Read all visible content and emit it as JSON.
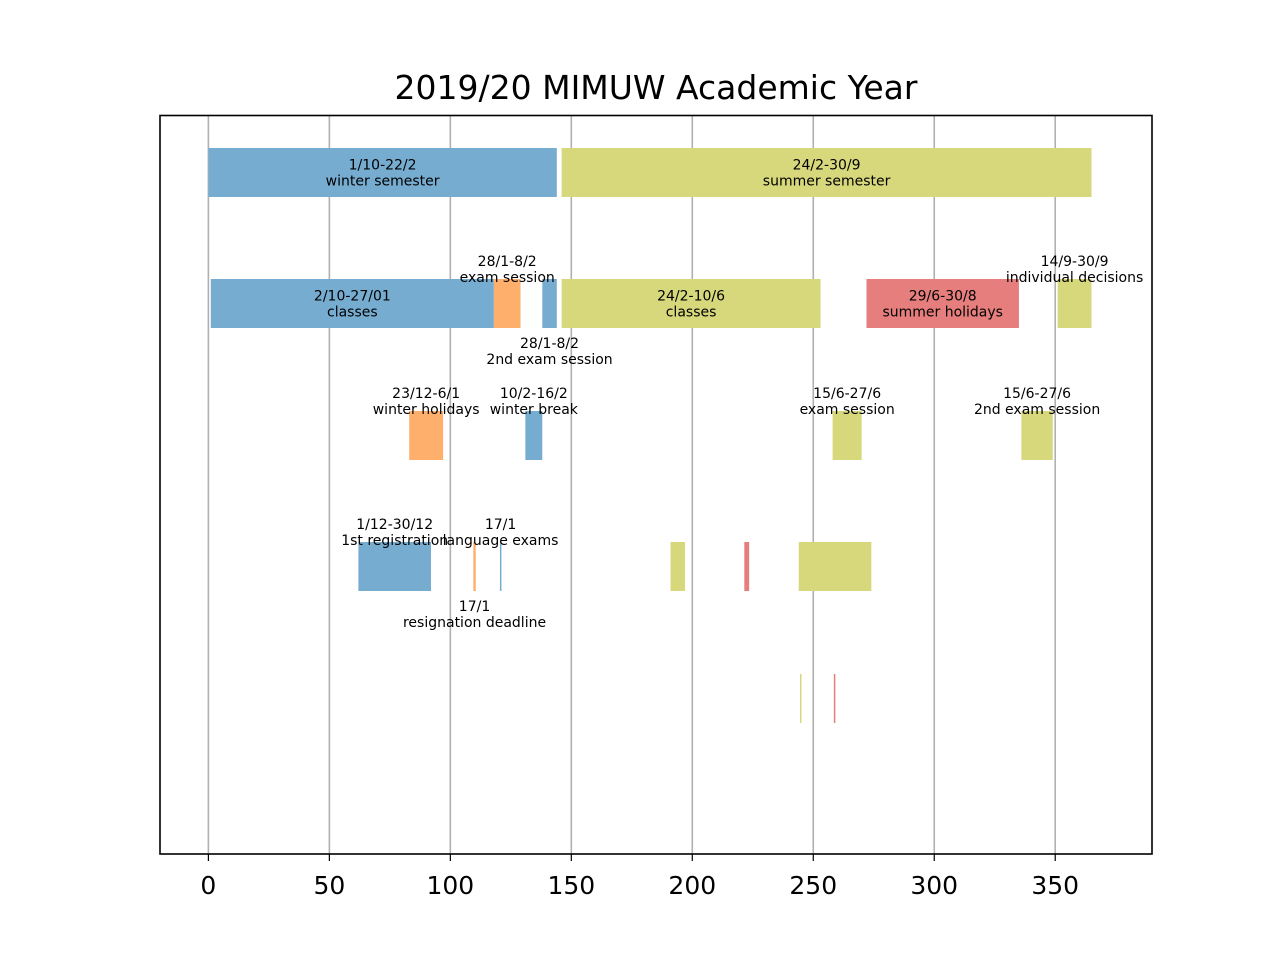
{
  "chart_data": {
    "type": "bar",
    "orientation": "horizontal",
    "title": "2019/20 MIMUW Academic Year",
    "xlabel": "",
    "ylabel": "",
    "xlim": [
      -20,
      390
    ],
    "x_ticks": [
      0,
      50,
      100,
      150,
      200,
      250,
      300,
      350
    ],
    "x_tick_labels": [
      "0",
      "50",
      "100",
      "150",
      "200",
      "250",
      "300",
      "350"
    ],
    "grid": "x",
    "legend": "none",
    "colors": {
      "blue": "#77acd1",
      "orange": "#feaf6b",
      "olive": "#d7d87c",
      "red": "#e57e7c",
      "grid": "#b0b0b0"
    },
    "bars": [
      {
        "row": 0,
        "start": 0,
        "end": 144,
        "color": "blue",
        "label": "1/10-22/2\nwinter semester",
        "label_pos": "center"
      },
      {
        "row": 0,
        "start": 146,
        "end": 365,
        "color": "olive",
        "label": "24/2-30/9\nsummer semester",
        "label_pos": "center"
      },
      {
        "row": 1,
        "start": 1,
        "end": 118,
        "color": "blue",
        "label": "2/10-27/01\nclasses",
        "label_pos": "center"
      },
      {
        "row": 1,
        "start": 118,
        "end": 129,
        "color": "orange",
        "label": "28/1-8/2\nexam session",
        "label_pos": "above"
      },
      {
        "row": 1,
        "start": 138,
        "end": 144,
        "color": "blue",
        "label": "28/1-8/2\n2nd exam session",
        "label_pos": "below"
      },
      {
        "row": 1,
        "start": 146,
        "end": 253,
        "color": "olive",
        "label": "24/2-10/6\nclasses",
        "label_pos": "center"
      },
      {
        "row": 1,
        "start": 272,
        "end": 335,
        "color": "red",
        "label": "29/6-30/8\nsummer holidays",
        "label_pos": "center"
      },
      {
        "row": 1,
        "start": 351,
        "end": 365,
        "color": "olive",
        "label": "14/9-30/9\nindividual decisions",
        "label_pos": "above"
      },
      {
        "row": 2,
        "start": 83,
        "end": 97,
        "color": "orange",
        "label": "23/12-6/1\nwinter holidays",
        "label_pos": "above"
      },
      {
        "row": 2,
        "start": 131,
        "end": 138,
        "color": "blue",
        "label": "10/2-16/2\nwinter break",
        "label_pos": "above"
      },
      {
        "row": 2,
        "start": 258,
        "end": 270,
        "color": "olive",
        "label": "15/6-27/6\nexam session",
        "label_pos": "above"
      },
      {
        "row": 2,
        "start": 336,
        "end": 349,
        "color": "olive",
        "label": "15/6-27/6\n2nd exam session",
        "label_pos": "above"
      },
      {
        "row": 3,
        "start": 62,
        "end": 92,
        "color": "blue",
        "label": "1/12-30/12\n1st registration",
        "label_pos": "above"
      },
      {
        "row": 3,
        "start": 109.5,
        "end": 110.5,
        "color": "orange",
        "label": "17/1\nresignation deadline",
        "label_pos": "below"
      },
      {
        "row": 3,
        "start": 120.5,
        "end": 121,
        "color": "blue",
        "label": "17/1\nlanguage exams",
        "label_pos": "above"
      },
      {
        "row": 3,
        "start": 191,
        "end": 197,
        "color": "olive",
        "label": "",
        "label_pos": "none"
      },
      {
        "row": 3,
        "start": 221.5,
        "end": 223.5,
        "color": "red",
        "label": "",
        "label_pos": "none"
      },
      {
        "row": 3,
        "start": 244,
        "end": 274,
        "color": "olive",
        "label": "",
        "label_pos": "none"
      },
      {
        "row": 4,
        "start": 244.5,
        "end": 245,
        "color": "olive",
        "label": "",
        "label_pos": "none"
      },
      {
        "row": 4,
        "start": 258.5,
        "end": 259,
        "color": "red",
        "label": "",
        "label_pos": "none"
      }
    ]
  }
}
